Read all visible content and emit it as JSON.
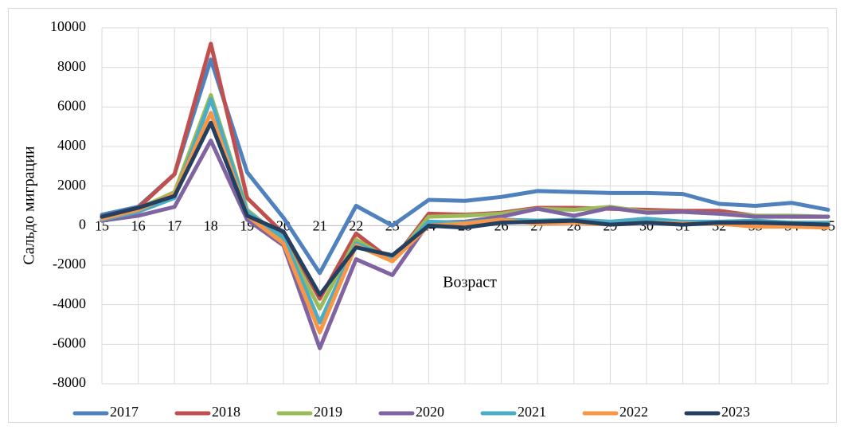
{
  "chart_data": {
    "type": "line",
    "y_label": "Сальдо миграции",
    "x_label": "Возраст",
    "categories": [
      "15",
      "16",
      "17",
      "18",
      "19",
      "20",
      "21",
      "22",
      "23",
      "24",
      "25",
      "26",
      "27",
      "28",
      "29",
      "30",
      "31",
      "32",
      "33",
      "34",
      "35"
    ],
    "ylim": [
      -8000,
      10000
    ],
    "yticks": [
      -8000,
      -6000,
      -4000,
      -2000,
      0,
      2000,
      4000,
      6000,
      8000,
      10000
    ],
    "grid": true,
    "legend": "bottom",
    "series": [
      {
        "name": "2017",
        "color": "#4f81bd",
        "values": [
          550,
          950,
          2600,
          8400,
          2700,
          400,
          -2400,
          1000,
          0,
          1300,
          1250,
          1450,
          1750,
          1700,
          1650,
          1650,
          1600,
          1100,
          1000,
          1150,
          800
        ]
      },
      {
        "name": "2018",
        "color": "#c0504d",
        "values": [
          400,
          900,
          2600,
          9200,
          1400,
          -400,
          -3700,
          -400,
          -1800,
          600,
          550,
          650,
          900,
          900,
          850,
          800,
          750,
          750,
          500,
          450,
          450
        ]
      },
      {
        "name": "2019",
        "color": "#9bbb59",
        "values": [
          350,
          850,
          1700,
          6600,
          800,
          -700,
          -4200,
          -700,
          -1800,
          450,
          500,
          600,
          850,
          800,
          950,
          700,
          700,
          600,
          500,
          500,
          450
        ]
      },
      {
        "name": "2020",
        "color": "#8064a2",
        "values": [
          250,
          500,
          950,
          4300,
          300,
          -1000,
          -6200,
          -1700,
          -2500,
          150,
          200,
          450,
          850,
          500,
          900,
          650,
          700,
          600,
          450,
          450,
          450
        ]
      },
      {
        "name": "2021",
        "color": "#4bacc6",
        "values": [
          300,
          700,
          1400,
          6400,
          700,
          -600,
          -4900,
          -900,
          -1700,
          200,
          150,
          300,
          250,
          300,
          200,
          350,
          200,
          200,
          250,
          150,
          150
        ]
      },
      {
        "name": "2022",
        "color": "#f79646",
        "values": [
          350,
          800,
          1600,
          5700,
          500,
          -900,
          -5400,
          -1000,
          -1800,
          0,
          100,
          300,
          100,
          150,
          50,
          150,
          100,
          100,
          -50,
          -50,
          -100
        ]
      },
      {
        "name": "2023",
        "color": "#243f60",
        "values": [
          450,
          900,
          1500,
          5200,
          500,
          -300,
          -3500,
          -1100,
          -1500,
          0,
          -100,
          150,
          200,
          250,
          50,
          150,
          50,
          150,
          150,
          100,
          50
        ]
      }
    ]
  }
}
